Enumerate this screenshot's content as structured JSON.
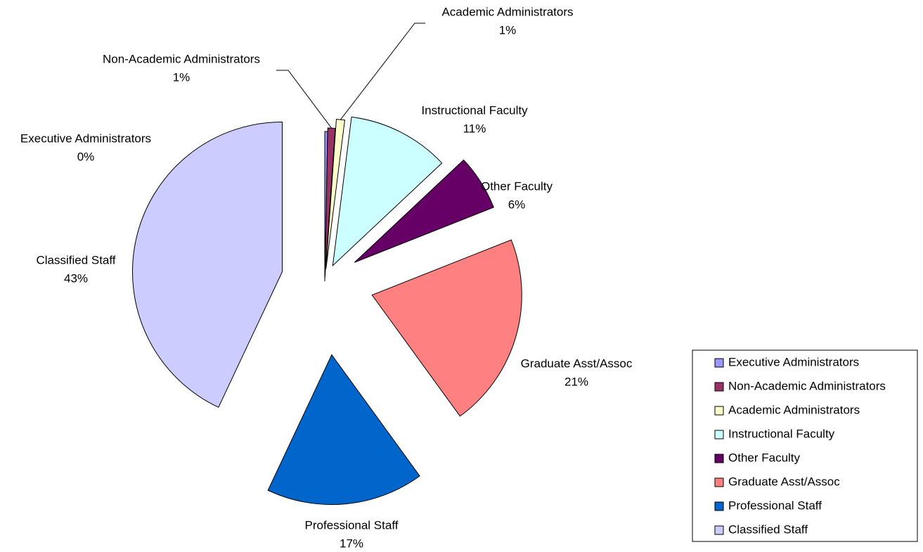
{
  "chart_data": {
    "type": "pie",
    "categories": [
      "Executive Administrators",
      "Non-Academic Administrators",
      "Academic Administrators",
      "Instructional Faculty",
      "Other Faculty",
      "Graduate Asst/Assoc",
      "Professional Staff",
      "Classified Staff"
    ],
    "values": [
      0.3,
      0.8,
      0.9,
      11,
      6,
      21,
      17,
      43
    ],
    "value_labels": [
      "0%",
      "1%",
      "1%",
      "11%",
      "6%",
      "21%",
      "17%",
      "43%"
    ],
    "colors": [
      "#9999ff",
      "#993366",
      "#ffffcc",
      "#ccffff",
      "#660066",
      "#ff8080",
      "#0066cc",
      "#ccccff"
    ],
    "legend": "right"
  }
}
